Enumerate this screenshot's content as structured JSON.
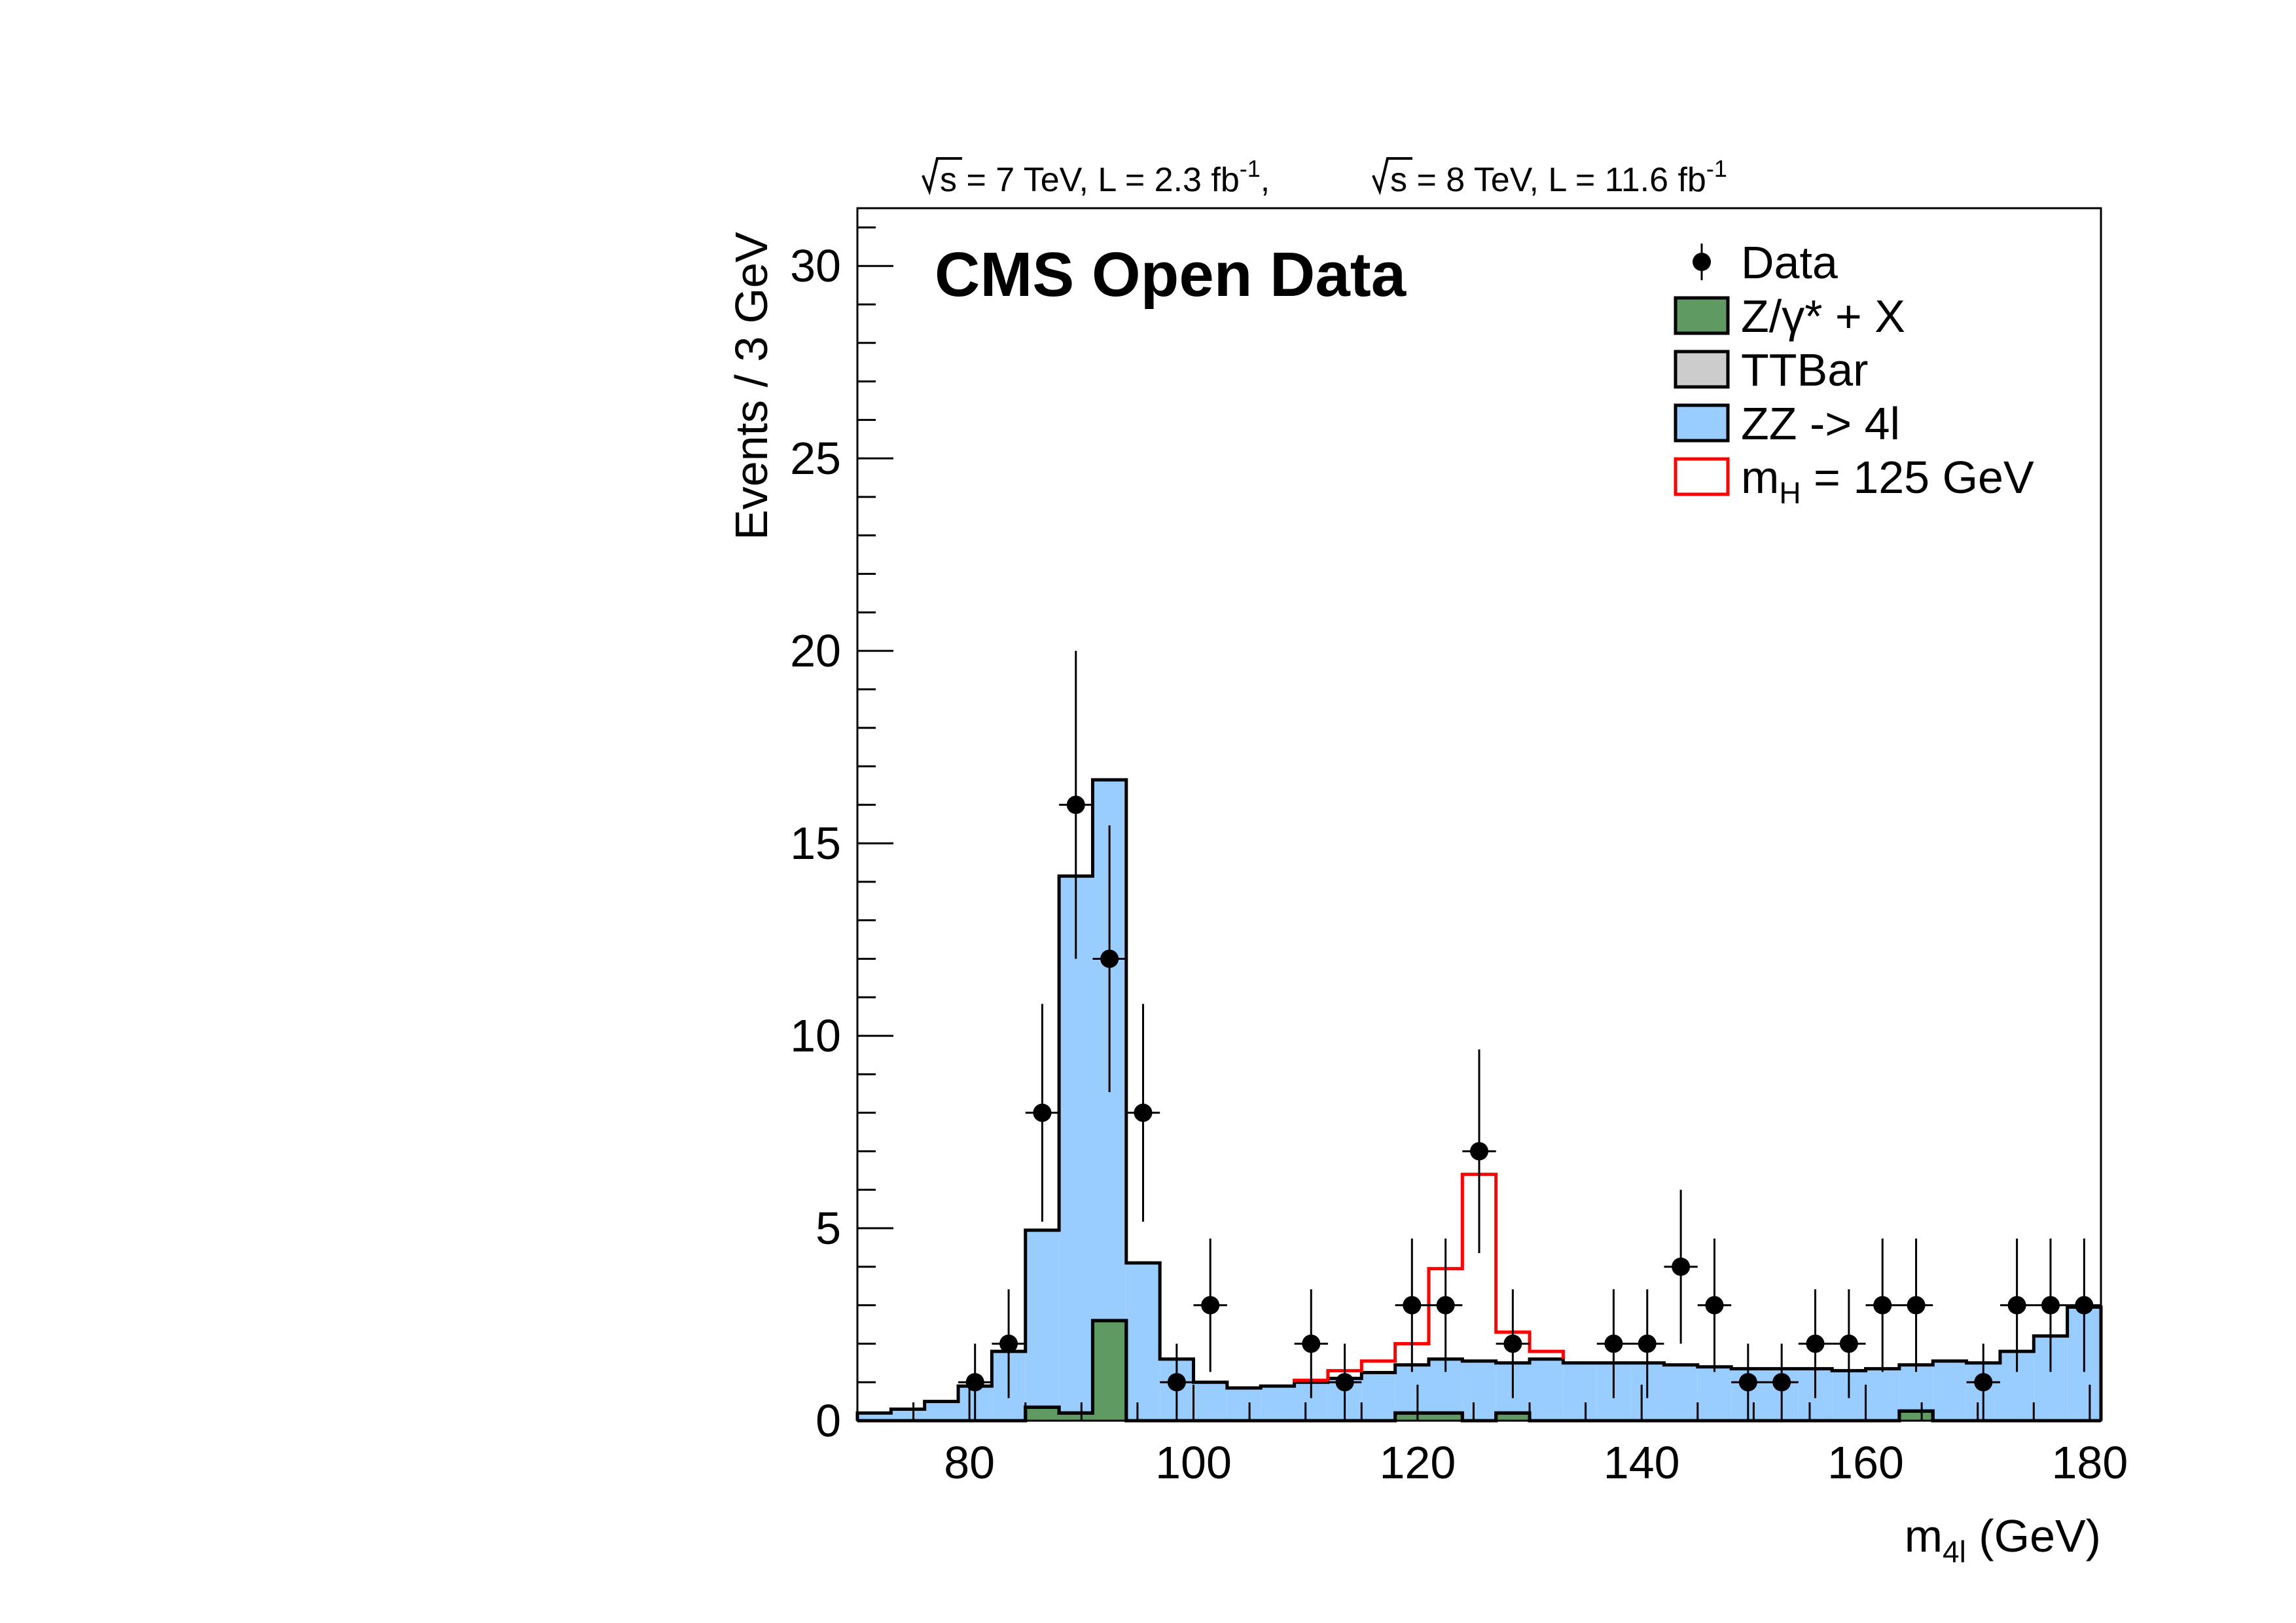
{
  "chart_data": {
    "type": "stacked_histogram",
    "title": "CMS Open Data",
    "subtitle": {
      "part1_sqrt": "s = 7 TeV, L = 2.3 fb",
      "part1_exp": "-1",
      "separator": ",",
      "part2_sqrt": "s = 8 TeV, L = 11.6 fb",
      "part2_exp": "-1"
    },
    "xlabel": {
      "main": "m",
      "sub": "4l",
      "rest": " (GeV)"
    },
    "ylabel": "Events / 3 GeV",
    "xlim": [
      70,
      181
    ],
    "ylim": [
      0,
      31.5
    ],
    "xticks": [
      80,
      100,
      120,
      140,
      160,
      180
    ],
    "yticks": [
      0,
      5,
      10,
      15,
      20,
      25,
      30
    ],
    "xtick_labels": [
      "80",
      "100",
      "120",
      "140",
      "160",
      "180"
    ],
    "ytick_labels": [
      "0",
      "5",
      "10",
      "15",
      "20",
      "25",
      "30"
    ],
    "bin_edges": [
      70,
      73,
      76,
      79,
      82,
      85,
      88,
      91,
      94,
      97,
      100,
      103,
      106,
      109,
      112,
      115,
      118,
      121,
      124,
      127,
      130,
      133,
      136,
      139,
      142,
      145,
      148,
      151,
      154,
      157,
      160,
      163,
      166,
      169,
      172,
      175,
      178,
      181
    ],
    "series": [
      {
        "name": "Z/γ* + X",
        "color": "#5f9a63",
        "values": [
          0,
          0,
          0,
          0,
          0,
          0.35,
          0.2,
          2.6,
          0,
          0,
          0,
          0,
          0,
          0,
          0,
          0,
          0.2,
          0.2,
          0,
          0.2,
          0,
          0,
          0,
          0,
          0,
          0,
          0,
          0,
          0,
          0,
          0,
          0.25,
          0,
          0,
          0,
          0,
          0
        ]
      },
      {
        "name": "TTBar",
        "color": "#cccccc",
        "values": [
          0,
          0,
          0,
          0,
          0,
          0,
          0,
          0,
          0,
          0,
          0,
          0,
          0,
          0,
          0,
          0,
          0,
          0,
          0,
          0,
          0,
          0,
          0,
          0,
          0,
          0,
          0,
          0,
          0,
          0,
          0,
          0,
          0,
          0,
          0,
          0,
          0
        ]
      },
      {
        "name": "ZZ -> 4l",
        "color": "#99ccff",
        "values": [
          0.2,
          0.3,
          0.5,
          0.9,
          1.8,
          4.6,
          13.95,
          14.05,
          4.1,
          1.6,
          1.0,
          0.85,
          0.9,
          1.0,
          1.1,
          1.25,
          1.25,
          1.4,
          1.55,
          1.3,
          1.6,
          1.5,
          1.5,
          1.5,
          1.45,
          1.4,
          1.35,
          1.35,
          1.35,
          1.3,
          1.35,
          1.2,
          1.55,
          1.5,
          1.8,
          2.2,
          2.95
        ]
      }
    ],
    "signal": {
      "name": "m",
      "name_sub": "H",
      "name_rest": " = 125 GeV",
      "color": "#ff0000",
      "values": [
        0,
        0,
        0,
        0,
        0,
        0,
        0,
        0,
        0,
        0,
        0,
        0,
        0,
        0.05,
        0.2,
        0.3,
        0.55,
        2.35,
        4.85,
        0.8,
        0.2,
        0,
        0,
        0,
        0,
        0,
        0,
        0,
        0,
        0,
        0,
        0,
        0,
        0,
        0,
        0,
        0
      ]
    },
    "data_points": {
      "name": "Data",
      "x": [
        80.5,
        83.5,
        86.5,
        89.5,
        92.5,
        95.5,
        98.5,
        101.5,
        110.5,
        113.5,
        119.5,
        122.5,
        125.5,
        128.5,
        137.5,
        140.5,
        143.5,
        146.5,
        149.5,
        152.5,
        155.5,
        158.5,
        161.5,
        164.5,
        170.5,
        173.5,
        176.5,
        179.5
      ],
      "y": [
        1,
        2,
        8,
        16,
        12,
        8,
        1,
        3,
        2,
        1,
        3,
        3,
        7,
        2,
        2,
        2,
        4,
        3,
        1,
        1,
        2,
        2,
        3,
        3,
        1,
        3,
        3,
        3
      ],
      "xerr": 1.5
    },
    "legend_position": "top-right"
  }
}
